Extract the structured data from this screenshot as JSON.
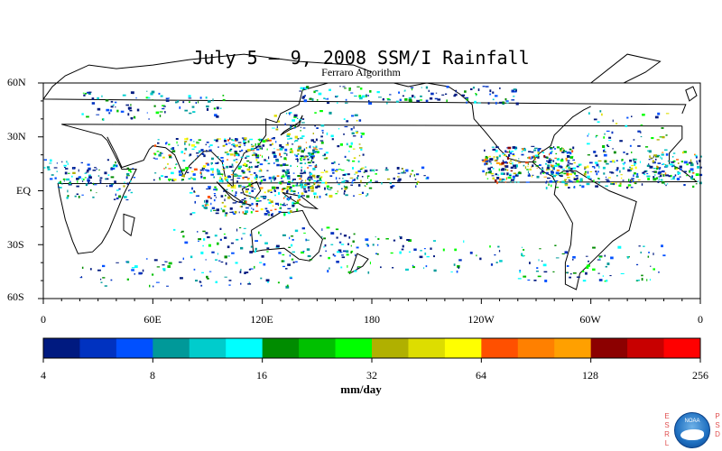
{
  "title": "July 5 – 9, 2008 SSM/I Rainfall",
  "subtitle": "Ferraro Algorithm",
  "map": {
    "lat_labels": [
      "60N",
      "30N",
      "EQ",
      "30S",
      "60S"
    ],
    "lon_labels": [
      "0",
      "60E",
      "120E",
      "180",
      "120W",
      "60W",
      "0"
    ],
    "lat_range": [
      -60,
      60
    ],
    "lon_range": [
      0,
      360
    ]
  },
  "colorbar": {
    "colors": [
      "#001a80",
      "#0032c0",
      "#0050ff",
      "#009999",
      "#00cccc",
      "#00ffff",
      "#008c00",
      "#00c000",
      "#00ff00",
      "#b0b000",
      "#dddd00",
      "#ffff00",
      "#ff5000",
      "#ff8000",
      "#ffa000",
      "#8c0000",
      "#c80000",
      "#ff0000"
    ],
    "tick_labels": [
      "4",
      "8",
      "16",
      "32",
      "64",
      "128",
      "256"
    ],
    "units": "mm/day",
    "scale": "log2"
  },
  "logo": {
    "left_letters": [
      "E",
      "S",
      "R",
      "L"
    ],
    "right_letters": [
      "P",
      "S",
      "D"
    ],
    "text": "NOAA"
  }
}
